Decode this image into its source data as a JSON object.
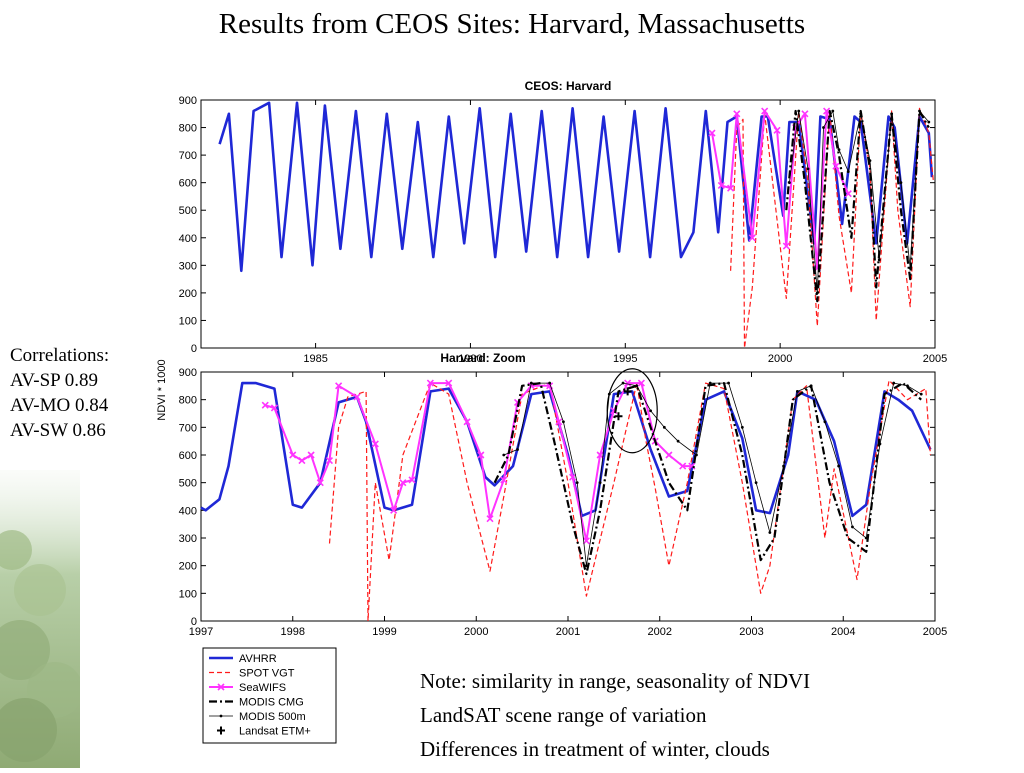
{
  "slide": {
    "title": "Results from CEOS Sites: Harvard, Massachusetts",
    "correlations": {
      "heading": "Correlations:",
      "lines": [
        "AV-SP  0.89",
        "AV-MO 0.84",
        "AV-SW 0.86"
      ]
    },
    "notes": [
      "Note: similarity in range, seasonality of NDVI",
      "LandSAT scene range of variation",
      "Differences in treatment of winter, clouds"
    ]
  },
  "colors": {
    "avhrr": "#1f28d6",
    "spot": "#ff1a1a",
    "seawifs": "#ff33ff",
    "modis_cmg": "#000000",
    "modis_500m": "#000000",
    "landsat": "#000000"
  },
  "legend": {
    "placement": "below bottom chart",
    "entries": [
      {
        "name": "AVHRR",
        "series": "avhrr"
      },
      {
        "name": "SPOT VGT",
        "series": "spot"
      },
      {
        "name": "SeaWIFS",
        "series": "seawifs"
      },
      {
        "name": "MODIS CMG",
        "series": "modis_cmg"
      },
      {
        "name": "MODIS 500m",
        "series": "modis_500m"
      },
      {
        "name": "Landsat ETM+",
        "series": "landsat"
      }
    ]
  },
  "chart_data": [
    {
      "type": "line",
      "title": "CEOS: Harvard",
      "xlabel": "",
      "ylabel": "NDVI * 1000",
      "xlim": [
        1981.3,
        2005
      ],
      "ylim": [
        0,
        900
      ],
      "xticks": [
        1985,
        1990,
        1995,
        2000,
        2005
      ],
      "yticks": [
        0,
        100,
        200,
        300,
        400,
        500,
        600,
        700,
        800,
        900
      ],
      "grid": false,
      "series": [
        {
          "key": "avhrr",
          "name": "AVHRR",
          "x": [
            1981.9,
            1982.2,
            1982.6,
            1983.0,
            1983.5,
            1983.9,
            1984.4,
            1984.9,
            1985.3,
            1985.8,
            1986.3,
            1986.8,
            1987.3,
            1987.8,
            1988.3,
            1988.8,
            1989.3,
            1989.8,
            1990.3,
            1990.8,
            1991.3,
            1991.8,
            1992.3,
            1992.8,
            1993.3,
            1993.8,
            1994.3,
            1994.8,
            1995.3,
            1995.8,
            1996.3,
            1996.8,
            1997.2,
            1997.6,
            1998.0,
            1998.3,
            1998.6,
            1999.0,
            1999.4,
            1999.6,
            2000.1,
            2000.3,
            2000.6,
            2001.1,
            2001.3,
            2001.6,
            2002.0,
            2002.4,
            2002.6,
            2003.1,
            2003.5,
            2003.7,
            2004.1,
            2004.5,
            2004.8,
            2004.9
          ],
          "y": [
            740,
            850,
            280,
            860,
            890,
            330,
            890,
            300,
            880,
            360,
            860,
            330,
            850,
            360,
            820,
            330,
            840,
            380,
            870,
            330,
            850,
            350,
            860,
            330,
            870,
            330,
            840,
            350,
            860,
            330,
            870,
            330,
            420,
            860,
            420,
            820,
            840,
            390,
            840,
            840,
            480,
            820,
            820,
            380,
            840,
            830,
            450,
            840,
            820,
            380,
            840,
            800,
            380,
            840,
            780,
            620
          ]
        },
        {
          "key": "spot",
          "name": "SPOT VGT",
          "x": [
            1998.4,
            1998.6,
            1998.8,
            1998.85,
            1999.1,
            1999.5,
            1999.8,
            2000.2,
            2000.6,
            2000.9,
            2001.2,
            2001.6,
            2001.9,
            2002.3,
            2002.6,
            2002.9,
            2003.1,
            2003.6,
            2003.8,
            2004.2,
            2004.5,
            2004.8,
            2004.95
          ],
          "y": [
            280,
            800,
            830,
            0,
            220,
            850,
            560,
            180,
            860,
            600,
            80,
            860,
            480,
            200,
            860,
            650,
            100,
            860,
            500,
            150,
            870,
            780,
            600
          ]
        },
        {
          "key": "seawifs",
          "name": "SeaWIFS",
          "x": [
            1997.8,
            1998.1,
            1998.4,
            1998.6,
            1999.1,
            1999.5,
            1999.9,
            2000.2,
            2000.5,
            2000.8,
            2001.2,
            2001.5,
            2001.8,
            2002.2
          ],
          "y": [
            780,
            590,
            580,
            850,
            400,
            860,
            790,
            370,
            800,
            850,
            290,
            860,
            660,
            560
          ]
        },
        {
          "key": "modis_cmg",
          "name": "MODIS CMG",
          "x": [
            2000.2,
            2000.5,
            2000.8,
            2001.2,
            2001.6,
            2001.9,
            2002.3,
            2002.6,
            2002.9,
            2003.1,
            2003.6,
            2003.9,
            2004.2,
            2004.5,
            2004.8
          ],
          "y": [
            500,
            860,
            600,
            170,
            860,
            700,
            400,
            860,
            650,
            220,
            850,
            500,
            250,
            860,
            800
          ]
        },
        {
          "key": "modis_500m",
          "name": "MODIS 500m",
          "x": [
            2000.3,
            2000.6,
            2000.9,
            2001.2,
            2001.4,
            2001.7,
            2001.9,
            2002.2,
            2002.6,
            2002.9,
            2003.2,
            2003.6,
            2003.9,
            2004.2,
            2004.5,
            2004.8
          ],
          "y": [
            600,
            860,
            650,
            200,
            800,
            860,
            720,
            640,
            850,
            680,
            320,
            850,
            600,
            290,
            860,
            820
          ]
        }
      ]
    },
    {
      "type": "line",
      "title": "Harvard: Zoom",
      "xlabel": "",
      "ylabel": "NDVI * 1000",
      "xlim": [
        1997,
        2005
      ],
      "ylim": [
        0,
        900
      ],
      "xticks": [
        1997,
        1998,
        1999,
        2000,
        2001,
        2002,
        2003,
        2004,
        2005
      ],
      "yticks": [
        0,
        100,
        200,
        300,
        400,
        500,
        600,
        700,
        800,
        900
      ],
      "grid": false,
      "series": [
        {
          "key": "avhrr",
          "name": "AVHRR",
          "x": [
            1997.0,
            1997.05,
            1997.2,
            1997.3,
            1997.45,
            1997.6,
            1997.8,
            1998.0,
            1998.1,
            1998.3,
            1998.5,
            1998.7,
            1998.8,
            1999.0,
            1999.1,
            1999.3,
            1999.5,
            1999.7,
            1999.9,
            2000.1,
            2000.2,
            2000.4,
            2000.6,
            2000.8,
            2001.0,
            2001.15,
            2001.3,
            2001.5,
            2001.7,
            2001.9,
            2002.1,
            2002.3,
            2002.5,
            2002.7,
            2002.9,
            2003.05,
            2003.2,
            2003.4,
            2003.5,
            2003.7,
            2003.9,
            2004.1,
            2004.25,
            2004.45,
            2004.6,
            2004.75,
            2004.95
          ],
          "y": [
            410,
            400,
            440,
            560,
            860,
            860,
            840,
            420,
            410,
            500,
            790,
            810,
            720,
            410,
            400,
            420,
            830,
            840,
            720,
            520,
            490,
            560,
            820,
            830,
            600,
            380,
            400,
            820,
            830,
            620,
            450,
            470,
            800,
            830,
            660,
            400,
            390,
            600,
            830,
            800,
            650,
            380,
            420,
            830,
            800,
            760,
            620
          ]
        },
        {
          "key": "spot",
          "name": "SPOT VGT",
          "x": [
            1998.4,
            1998.5,
            1998.6,
            1998.8,
            1998.82,
            1998.9,
            1999.05,
            1999.2,
            1999.5,
            1999.7,
            1999.9,
            2000.15,
            2000.3,
            2000.5,
            2000.8,
            2001.0,
            2001.2,
            2001.5,
            2001.75,
            2001.85,
            2001.95,
            2002.1,
            2002.3,
            2002.5,
            2002.7,
            2002.9,
            2003.1,
            2003.2,
            2003.45,
            2003.6,
            2003.8,
            2003.9,
            2004.15,
            2004.3,
            2004.5,
            2004.7,
            2004.9,
            2004.95
          ],
          "y": [
            280,
            700,
            810,
            830,
            0,
            500,
            220,
            600,
            860,
            820,
            500,
            180,
            450,
            820,
            860,
            500,
            90,
            500,
            860,
            650,
            480,
            200,
            500,
            860,
            840,
            500,
            100,
            200,
            800,
            850,
            300,
            550,
            150,
            500,
            870,
            800,
            840,
            600
          ]
        },
        {
          "key": "seawifs",
          "name": "SeaWIFS",
          "x": [
            1997.7,
            1997.8,
            1998.0,
            1998.1,
            1998.2,
            1998.3,
            1998.4,
            1998.5,
            1998.7,
            1998.9,
            1999.1,
            1999.2,
            1999.3,
            1999.5,
            1999.7,
            1999.9,
            2000.05,
            2000.15,
            2000.3,
            2000.45,
            2000.6,
            2000.8,
            2000.9,
            2001.05,
            2001.2,
            2001.35,
            2001.5,
            2001.65,
            2001.8,
            2001.95,
            2002.1,
            2002.25,
            2002.35
          ],
          "y": [
            780,
            770,
            600,
            580,
            600,
            500,
            580,
            850,
            810,
            640,
            400,
            500,
            510,
            860,
            860,
            720,
            600,
            370,
            510,
            790,
            850,
            850,
            720,
            520,
            290,
            600,
            760,
            860,
            860,
            650,
            600,
            560,
            560
          ]
        },
        {
          "key": "modis_cmg",
          "name": "MODIS CMG",
          "x": [
            2000.2,
            2000.35,
            2000.5,
            2000.7,
            2000.85,
            2001.05,
            2001.2,
            2001.35,
            2001.55,
            2001.75,
            2001.9,
            2002.1,
            2002.3,
            2002.5,
            2002.7,
            2002.9,
            2003.1,
            2003.25,
            2003.45,
            2003.65,
            2003.85,
            2004.05,
            2004.25,
            2004.45,
            2004.65,
            2004.85
          ],
          "y": [
            500,
            600,
            850,
            860,
            650,
            350,
            170,
            400,
            830,
            850,
            700,
            500,
            400,
            850,
            860,
            600,
            220,
            300,
            800,
            850,
            500,
            300,
            250,
            820,
            860,
            800
          ]
        },
        {
          "key": "modis_500m",
          "name": "MODIS 500m",
          "x": [
            2000.3,
            2000.45,
            2000.6,
            2000.8,
            2000.95,
            2001.1,
            2001.2,
            2001.35,
            2001.45,
            2001.6,
            2001.75,
            2001.9,
            2002.05,
            2002.2,
            2002.4,
            2002.55,
            2002.75,
            2002.9,
            2003.05,
            2003.2,
            2003.35,
            2003.5,
            2003.65,
            2003.8,
            2003.95,
            2004.1,
            2004.25,
            2004.4,
            2004.55,
            2004.7,
            2004.85
          ],
          "y": [
            600,
            620,
            860,
            860,
            720,
            500,
            200,
            500,
            820,
            860,
            850,
            760,
            700,
            650,
            600,
            860,
            860,
            700,
            500,
            320,
            560,
            830,
            850,
            720,
            560,
            340,
            300,
            640,
            860,
            850,
            820
          ]
        },
        {
          "key": "landsat",
          "name": "Landsat ETM+",
          "x": [
            2001.55,
            2001.65
          ],
          "y": [
            740,
            830
          ]
        }
      ]
    }
  ]
}
